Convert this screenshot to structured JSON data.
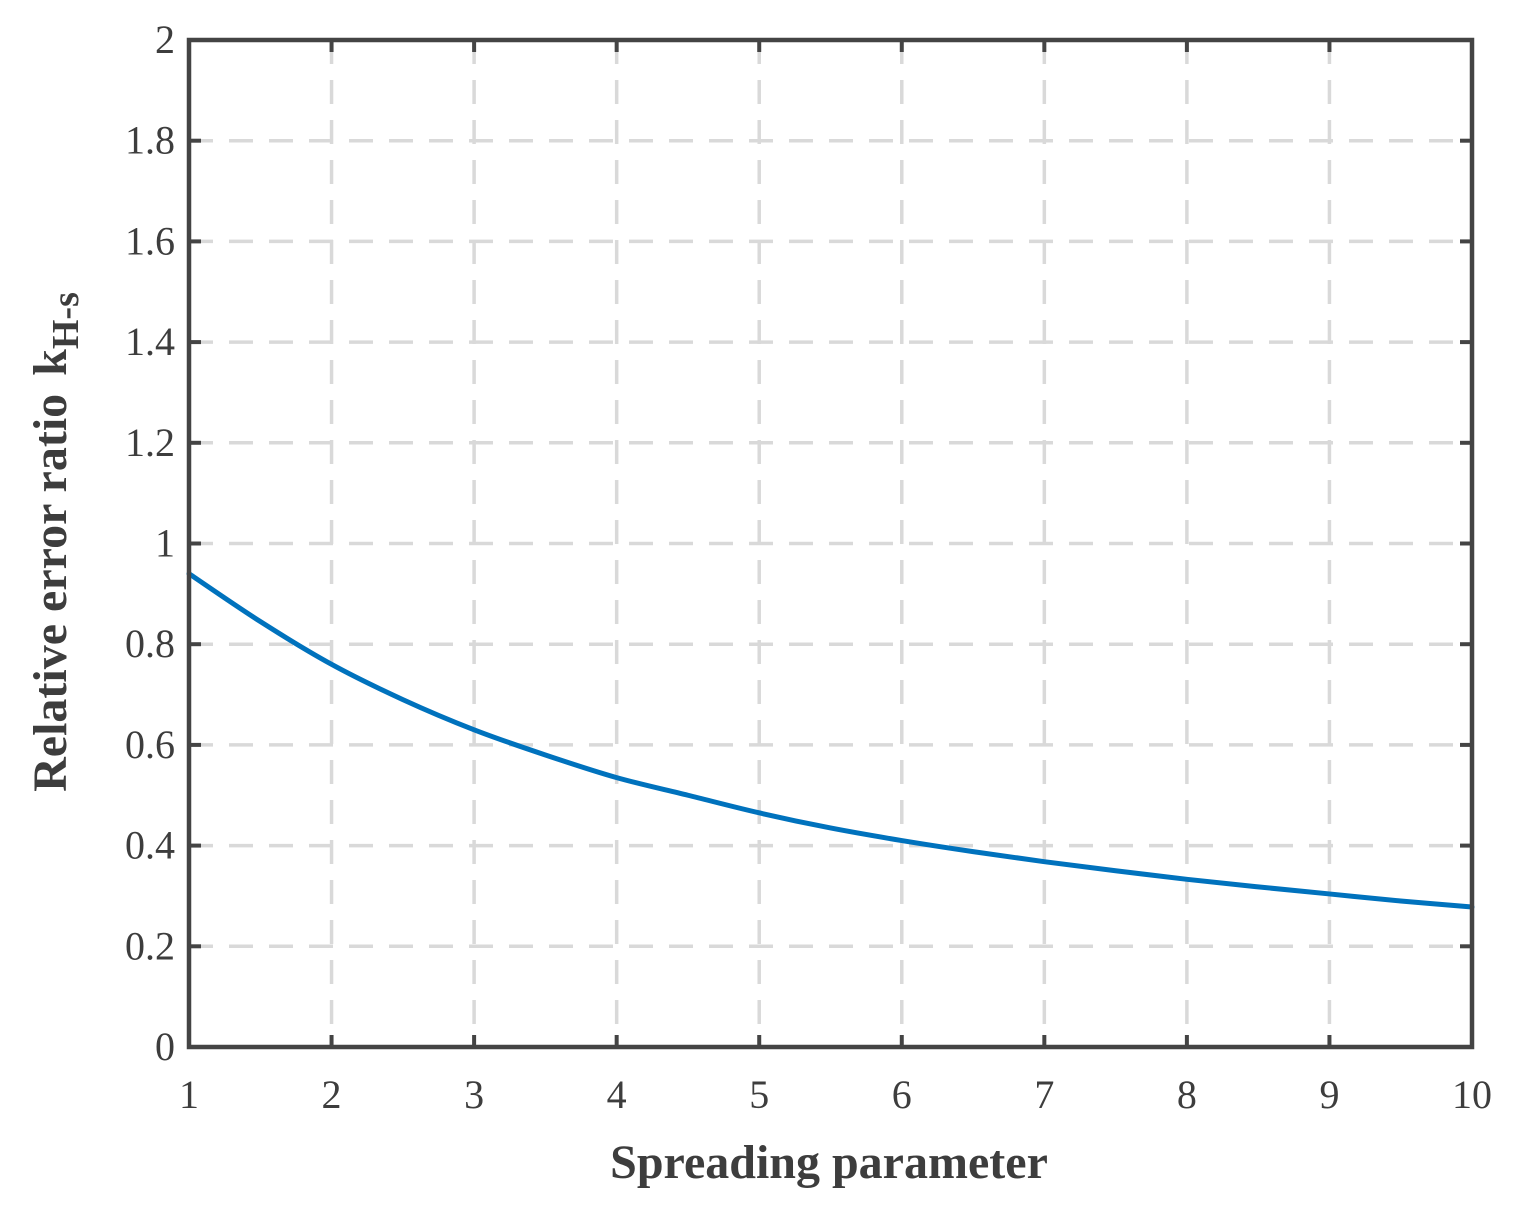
{
  "chart_data": {
    "type": "line",
    "title": "",
    "xlabel": "Spreading parameter",
    "ylabel": "Relative error ratio",
    "ylabel_symbol": "k",
    "ylabel_subscript": "H-s",
    "xlim": [
      1,
      10
    ],
    "ylim": [
      0,
      2
    ],
    "x_ticks": [
      1,
      2,
      3,
      4,
      5,
      6,
      7,
      8,
      9,
      10
    ],
    "x_tick_labels": [
      "1",
      "2",
      "3",
      "4",
      "5",
      "6",
      "7",
      "8",
      "9",
      "10"
    ],
    "y_ticks": [
      0,
      0.2,
      0.4,
      0.6,
      0.8,
      1,
      1.2,
      1.4,
      1.6,
      1.8,
      2
    ],
    "y_tick_labels": [
      "0",
      "0.2",
      "0.4",
      "0.6",
      "0.8",
      "1",
      "1.2",
      "1.4",
      "1.6",
      "1.8",
      "2"
    ],
    "grid": true,
    "grid_style": "dashed",
    "legend": "none",
    "series_color": "#0072bd",
    "series": [
      {
        "x": [
          1,
          1.5,
          2,
          2.5,
          3,
          3.5,
          4,
          4.5,
          5,
          5.5,
          6,
          6.5,
          7,
          7.5,
          8,
          8.5,
          9,
          9.5,
          10
        ],
        "values": [
          0.94,
          0.845,
          0.76,
          0.69,
          0.63,
          0.58,
          0.535,
          0.5,
          0.465,
          0.435,
          0.41,
          0.388,
          0.368,
          0.35,
          0.333,
          0.318,
          0.304,
          0.29,
          0.278
        ]
      }
    ]
  }
}
